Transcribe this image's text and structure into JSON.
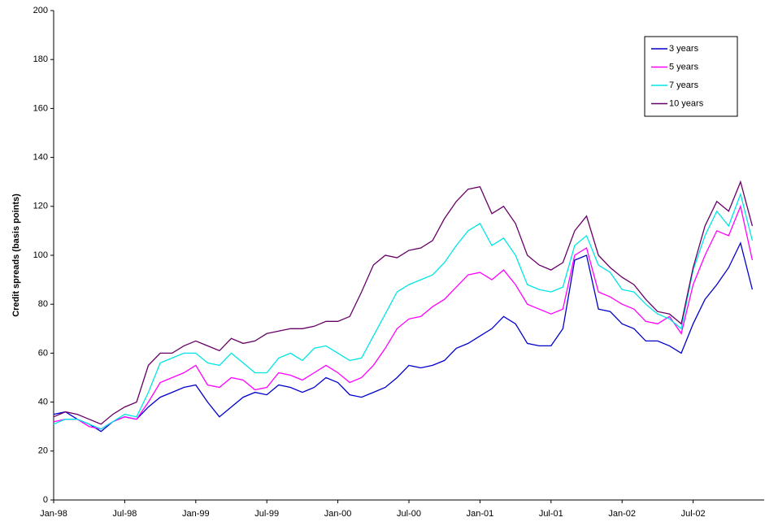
{
  "chart_data": {
    "type": "line",
    "y_label": "Credit spreads (basis points)",
    "categories": [
      "Jan-98",
      null,
      null,
      null,
      null,
      null,
      "Jul-98",
      null,
      null,
      null,
      null,
      null,
      "Jan-99",
      null,
      null,
      null,
      null,
      null,
      "Jul-99",
      null,
      null,
      null,
      null,
      null,
      "Jan-00",
      null,
      null,
      null,
      null,
      null,
      "Jul-00",
      null,
      null,
      null,
      null,
      null,
      "Jan-01",
      null,
      null,
      null,
      null,
      null,
      "Jul-01",
      null,
      null,
      null,
      null,
      null,
      "Jan-02",
      null,
      null,
      null,
      null,
      null,
      "Jul-02",
      null,
      null,
      null,
      null,
      null
    ],
    "series": [
      {
        "name": "3 years",
        "color": "#0000cc",
        "values": [
          35,
          36,
          33,
          31,
          28,
          32,
          34,
          33,
          38,
          42,
          44,
          46,
          47,
          40,
          34,
          38,
          42,
          44,
          43,
          47,
          46,
          44,
          46,
          50,
          48,
          43,
          42,
          44,
          46,
          50,
          55,
          54,
          55,
          57,
          62,
          64,
          67,
          70,
          75,
          72,
          64,
          63,
          63,
          70,
          98,
          100,
          78,
          77,
          72,
          70,
          65,
          65,
          63,
          60,
          72,
          82,
          88,
          95,
          105,
          86
        ]
      },
      {
        "name": "5 years",
        "color": "#ff00ff",
        "values": [
          32,
          33,
          33,
          30,
          29,
          32,
          34,
          33,
          40,
          48,
          50,
          52,
          55,
          47,
          46,
          50,
          49,
          45,
          46,
          52,
          51,
          49,
          52,
          55,
          52,
          48,
          50,
          55,
          62,
          70,
          74,
          75,
          79,
          82,
          87,
          92,
          93,
          90,
          94,
          88,
          80,
          78,
          76,
          78,
          100,
          103,
          85,
          83,
          80,
          78,
          73,
          72,
          75,
          68,
          88,
          100,
          110,
          108,
          120,
          98
        ]
      },
      {
        "name": "7 years",
        "color": "#00e5e5",
        "values": [
          31,
          33,
          33,
          31,
          29,
          32,
          35,
          34,
          44,
          56,
          58,
          60,
          60,
          56,
          55,
          60,
          56,
          52,
          52,
          58,
          60,
          57,
          62,
          63,
          60,
          57,
          58,
          67,
          76,
          85,
          88,
          90,
          92,
          97,
          104,
          110,
          113,
          104,
          107,
          100,
          88,
          86,
          85,
          87,
          104,
          108,
          96,
          93,
          86,
          85,
          80,
          76,
          74,
          70,
          94,
          108,
          118,
          112,
          125,
          106
        ]
      },
      {
        "name": "10 years",
        "color": "#660066",
        "values": [
          34,
          36,
          35,
          33,
          31,
          35,
          38,
          40,
          55,
          60,
          60,
          63,
          65,
          63,
          61,
          66,
          64,
          65,
          68,
          69,
          70,
          70,
          71,
          73,
          73,
          75,
          85,
          96,
          100,
          99,
          102,
          103,
          106,
          115,
          122,
          127,
          128,
          117,
          120,
          113,
          100,
          96,
          94,
          97,
          110,
          116,
          100,
          95,
          91,
          88,
          82,
          77,
          76,
          72,
          95,
          112,
          122,
          118,
          130,
          112
        ]
      }
    ],
    "ylim": [
      0,
      200
    ],
    "yticks": [
      0,
      20,
      40,
      60,
      80,
      100,
      120,
      140,
      160,
      180,
      200
    ],
    "grid": false,
    "legend": "upper right"
  }
}
